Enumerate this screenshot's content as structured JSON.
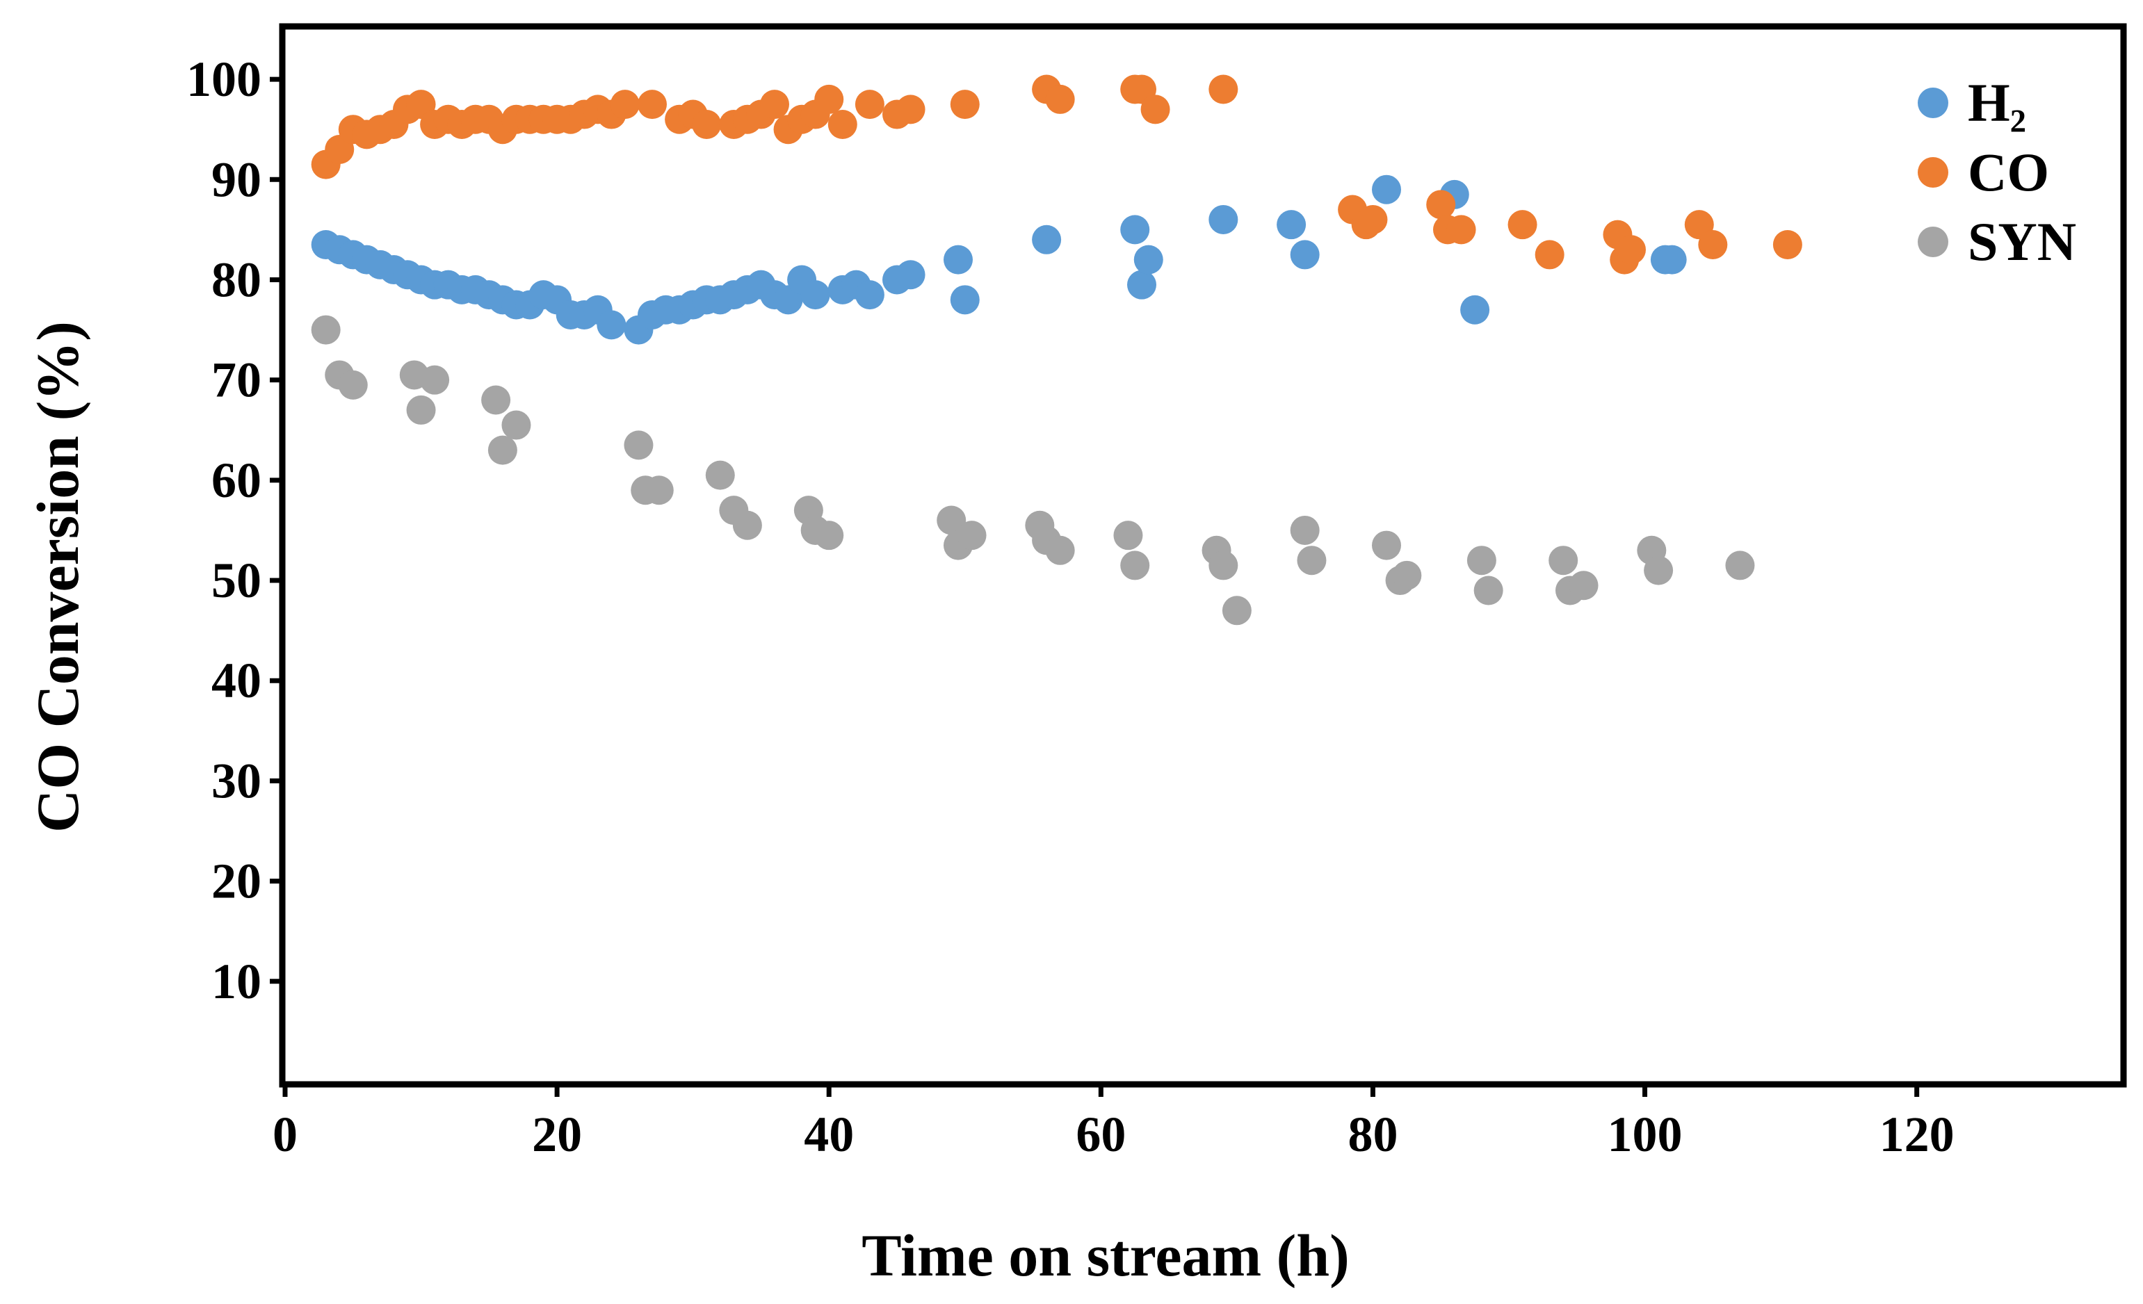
{
  "chart_data": {
    "type": "scatter",
    "title": "",
    "xlabel": "Time on stream (h)",
    "ylabel": "CO Conversion (%)",
    "xlim": [
      0,
      135
    ],
    "ylim": [
      0,
      105
    ],
    "x_ticks": [
      0,
      20,
      40,
      60,
      80,
      100,
      120
    ],
    "y_ticks": [
      10,
      20,
      30,
      40,
      50,
      60,
      70,
      80,
      90,
      100
    ],
    "grid": false,
    "legend_position": "top-right",
    "series": [
      {
        "name": "H₂",
        "color": "#5B9BD5",
        "points": [
          [
            3,
            83.5
          ],
          [
            4,
            83
          ],
          [
            5,
            82.5
          ],
          [
            6,
            82
          ],
          [
            7,
            81.5
          ],
          [
            8,
            81
          ],
          [
            9,
            80.5
          ],
          [
            10,
            80
          ],
          [
            11,
            79.5
          ],
          [
            12,
            79.5
          ],
          [
            13,
            79
          ],
          [
            14,
            79
          ],
          [
            15,
            78.5
          ],
          [
            16,
            78
          ],
          [
            17,
            77.5
          ],
          [
            18,
            77.5
          ],
          [
            19,
            78.5
          ],
          [
            20,
            78
          ],
          [
            21,
            76.5
          ],
          [
            22,
            76.5
          ],
          [
            23,
            77
          ],
          [
            24,
            75.5
          ],
          [
            26,
            75
          ],
          [
            27,
            76.5
          ],
          [
            28,
            77
          ],
          [
            29,
            77
          ],
          [
            30,
            77.5
          ],
          [
            31,
            78
          ],
          [
            32,
            78
          ],
          [
            33,
            78.5
          ],
          [
            34,
            79
          ],
          [
            35,
            79.5
          ],
          [
            36,
            78.5
          ],
          [
            37,
            78
          ],
          [
            38,
            80
          ],
          [
            39,
            78.5
          ],
          [
            41,
            79
          ],
          [
            42,
            79.5
          ],
          [
            43,
            78.5
          ],
          [
            45,
            80
          ],
          [
            46,
            80.5
          ],
          [
            49.5,
            82
          ],
          [
            50,
            78
          ],
          [
            56,
            84
          ],
          [
            62.5,
            85
          ],
          [
            63,
            79.5
          ],
          [
            63.5,
            82
          ],
          [
            69,
            86
          ],
          [
            74,
            85.5
          ],
          [
            75,
            82.5
          ],
          [
            81,
            89
          ],
          [
            86,
            88.5
          ],
          [
            87.5,
            77
          ],
          [
            101.5,
            82
          ],
          [
            102,
            82
          ]
        ]
      },
      {
        "name": "CO",
        "color": "#ED7D31",
        "points": [
          [
            3,
            91.5
          ],
          [
            4,
            93
          ],
          [
            5,
            95
          ],
          [
            6,
            94.5
          ],
          [
            7,
            95
          ],
          [
            8,
            95.5
          ],
          [
            9,
            97
          ],
          [
            10,
            97.5
          ],
          [
            11,
            95.5
          ],
          [
            12,
            96
          ],
          [
            13,
            95.5
          ],
          [
            14,
            96
          ],
          [
            15,
            96
          ],
          [
            16,
            95
          ],
          [
            17,
            96
          ],
          [
            18,
            96
          ],
          [
            19,
            96
          ],
          [
            20,
            96
          ],
          [
            21,
            96
          ],
          [
            22,
            96.5
          ],
          [
            23,
            97
          ],
          [
            24,
            96.5
          ],
          [
            25,
            97.5
          ],
          [
            27,
            97.5
          ],
          [
            29,
            96
          ],
          [
            30,
            96.5
          ],
          [
            31,
            95.5
          ],
          [
            33,
            95.5
          ],
          [
            34,
            96
          ],
          [
            35,
            96.5
          ],
          [
            36,
            97.5
          ],
          [
            37,
            95
          ],
          [
            38,
            96
          ],
          [
            39,
            96.5
          ],
          [
            40,
            98
          ],
          [
            41,
            95.5
          ],
          [
            43,
            97.5
          ],
          [
            45,
            96.5
          ],
          [
            46,
            97
          ],
          [
            50,
            97.5
          ],
          [
            56,
            99
          ],
          [
            57,
            98
          ],
          [
            62.5,
            99
          ],
          [
            63,
            99
          ],
          [
            64,
            97
          ],
          [
            69,
            99
          ],
          [
            78.5,
            87
          ],
          [
            79.5,
            85.5
          ],
          [
            80,
            86
          ],
          [
            85,
            87.5
          ],
          [
            85.5,
            85
          ],
          [
            86.5,
            85
          ],
          [
            91,
            85.5
          ],
          [
            93,
            82.5
          ],
          [
            98,
            84.5
          ],
          [
            98.5,
            82
          ],
          [
            99,
            83
          ],
          [
            104,
            85.5
          ],
          [
            105,
            83.5
          ],
          [
            110.5,
            83.5
          ]
        ]
      },
      {
        "name": "SYN",
        "color": "#A5A5A5",
        "points": [
          [
            3,
            75
          ],
          [
            4,
            70.5
          ],
          [
            5,
            69.5
          ],
          [
            9.5,
            70.5
          ],
          [
            10,
            67
          ],
          [
            11,
            70
          ],
          [
            15.5,
            68
          ],
          [
            16,
            63
          ],
          [
            17,
            65.5
          ],
          [
            26,
            63.5
          ],
          [
            26.5,
            59
          ],
          [
            27.5,
            59
          ],
          [
            32,
            60.5
          ],
          [
            33,
            57
          ],
          [
            34,
            55.5
          ],
          [
            38.5,
            57
          ],
          [
            39,
            55
          ],
          [
            40,
            54.5
          ],
          [
            49,
            56
          ],
          [
            49.5,
            53.5
          ],
          [
            50.5,
            54.5
          ],
          [
            55.5,
            55.5
          ],
          [
            56,
            54
          ],
          [
            57,
            53
          ],
          [
            62,
            54.5
          ],
          [
            62.5,
            51.5
          ],
          [
            68.5,
            53
          ],
          [
            69,
            51.5
          ],
          [
            70,
            47
          ],
          [
            75,
            55
          ],
          [
            75.5,
            52
          ],
          [
            81,
            53.5
          ],
          [
            82,
            50
          ],
          [
            82.5,
            50.5
          ],
          [
            88,
            52
          ],
          [
            88.5,
            49
          ],
          [
            94,
            52
          ],
          [
            94.5,
            49
          ],
          [
            95.5,
            49.5
          ],
          [
            100.5,
            53
          ],
          [
            101,
            51
          ],
          [
            107,
            51.5
          ]
        ]
      }
    ]
  }
}
